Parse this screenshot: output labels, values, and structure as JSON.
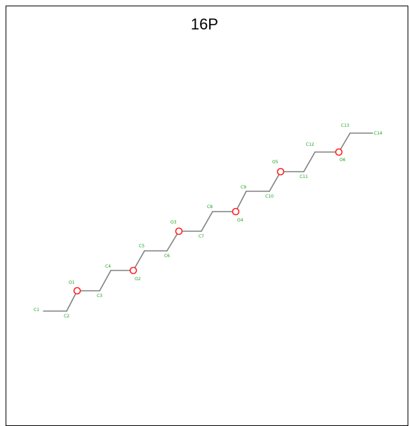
{
  "title": "16P",
  "colors": {
    "bond": "#808080",
    "carbon_label": "#1a9e1a",
    "oxygen": "#ff2020"
  },
  "atoms": [
    {
      "id": "C1",
      "element": "C"
    },
    {
      "id": "C2",
      "element": "C"
    },
    {
      "id": "O1",
      "element": "O"
    },
    {
      "id": "C3",
      "element": "C"
    },
    {
      "id": "C4",
      "element": "C"
    },
    {
      "id": "O2",
      "element": "O"
    },
    {
      "id": "C5",
      "element": "C"
    },
    {
      "id": "C6",
      "element": "C"
    },
    {
      "id": "O3",
      "element": "O"
    },
    {
      "id": "C7",
      "element": "C"
    },
    {
      "id": "C8",
      "element": "C"
    },
    {
      "id": "O4",
      "element": "O"
    },
    {
      "id": "C9",
      "element": "C"
    },
    {
      "id": "C10",
      "element": "C"
    },
    {
      "id": "O5",
      "element": "O"
    },
    {
      "id": "C11",
      "element": "C"
    },
    {
      "id": "C12",
      "element": "C"
    },
    {
      "id": "O6",
      "element": "O"
    },
    {
      "id": "C13",
      "element": "C"
    },
    {
      "id": "C14",
      "element": "C"
    }
  ],
  "bonds": [
    [
      "C1",
      "C2"
    ],
    [
      "C2",
      "O1"
    ],
    [
      "O1",
      "C3"
    ],
    [
      "C3",
      "C4"
    ],
    [
      "C4",
      "O2"
    ],
    [
      "O2",
      "C5"
    ],
    [
      "C5",
      "C6"
    ],
    [
      "C6",
      "O3"
    ],
    [
      "O3",
      "C7"
    ],
    [
      "C7",
      "C8"
    ],
    [
      "C8",
      "O4"
    ],
    [
      "O4",
      "C9"
    ],
    [
      "C9",
      "C10"
    ],
    [
      "C10",
      "O5"
    ],
    [
      "O5",
      "C11"
    ],
    [
      "C11",
      "C12"
    ],
    [
      "C12",
      "O6"
    ],
    [
      "O6",
      "C13"
    ],
    [
      "C13",
      "C14"
    ]
  ]
}
